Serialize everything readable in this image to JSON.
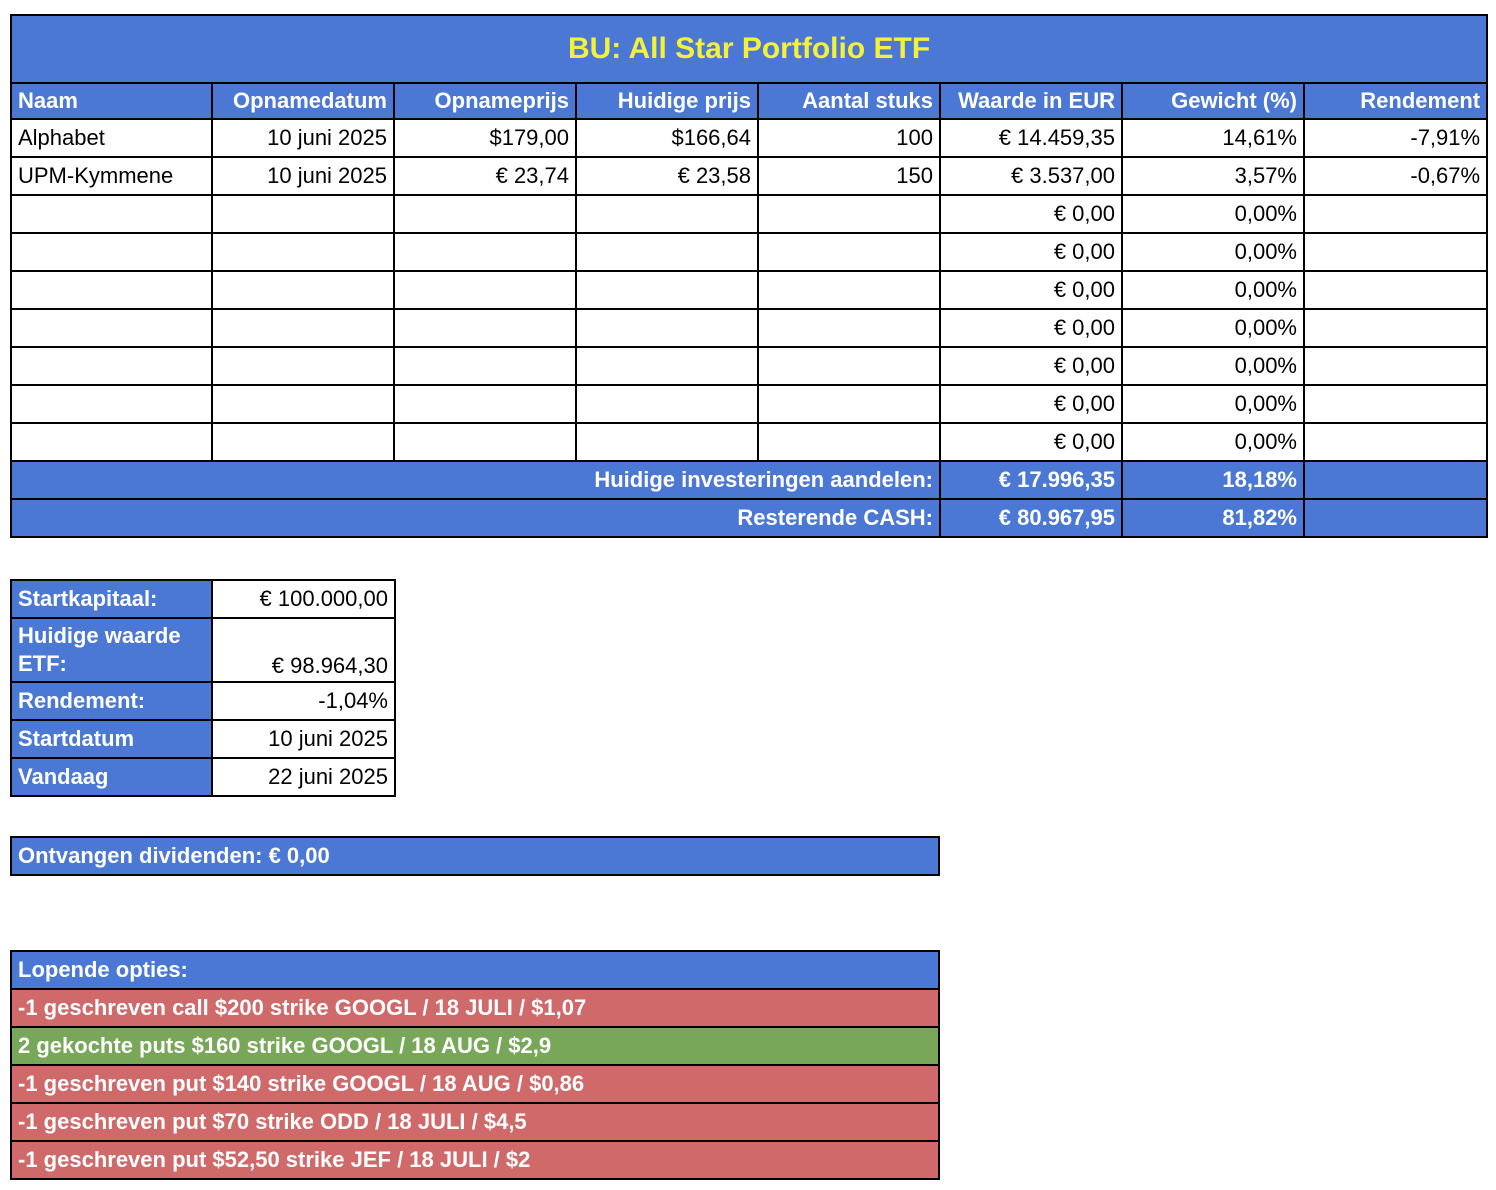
{
  "title": "BU: All Star Portfolio ETF",
  "columns": [
    "Naam",
    "Opnamedatum",
    "Opnameprijs",
    "Huidige prijs",
    "Aantal stuks",
    "Waarde in EUR",
    "Gewicht (%)",
    "Rendement"
  ],
  "rows": [
    {
      "naam": "Alphabet",
      "opnamedatum": "10 juni 2025",
      "opnameprijs": "$179,00",
      "huidige_prijs": "$166,64",
      "aantal": "100",
      "waarde": "€ 14.459,35",
      "gewicht": "14,61%",
      "rendement": "-7,91%"
    },
    {
      "naam": "UPM-Kymmene",
      "opnamedatum": "10 juni 2025",
      "opnameprijs": "€ 23,74",
      "huidige_prijs": "€ 23,58",
      "aantal": "150",
      "waarde": "€ 3.537,00",
      "gewicht": "3,57%",
      "rendement": "-0,67%"
    },
    {
      "naam": "",
      "opnamedatum": "",
      "opnameprijs": "",
      "huidige_prijs": "",
      "aantal": "",
      "waarde": "€ 0,00",
      "gewicht": "0,00%",
      "rendement": ""
    },
    {
      "naam": "",
      "opnamedatum": "",
      "opnameprijs": "",
      "huidige_prijs": "",
      "aantal": "",
      "waarde": "€ 0,00",
      "gewicht": "0,00%",
      "rendement": ""
    },
    {
      "naam": "",
      "opnamedatum": "",
      "opnameprijs": "",
      "huidige_prijs": "",
      "aantal": "",
      "waarde": "€ 0,00",
      "gewicht": "0,00%",
      "rendement": ""
    },
    {
      "naam": "",
      "opnamedatum": "",
      "opnameprijs": "",
      "huidige_prijs": "",
      "aantal": "",
      "waarde": "€ 0,00",
      "gewicht": "0,00%",
      "rendement": ""
    },
    {
      "naam": "",
      "opnamedatum": "",
      "opnameprijs": "",
      "huidige_prijs": "",
      "aantal": "",
      "waarde": "€ 0,00",
      "gewicht": "0,00%",
      "rendement": ""
    },
    {
      "naam": "",
      "opnamedatum": "",
      "opnameprijs": "",
      "huidige_prijs": "",
      "aantal": "",
      "waarde": "€ 0,00",
      "gewicht": "0,00%",
      "rendement": ""
    },
    {
      "naam": "",
      "opnamedatum": "",
      "opnameprijs": "",
      "huidige_prijs": "",
      "aantal": "",
      "waarde": "€ 0,00",
      "gewicht": "0,00%",
      "rendement": ""
    }
  ],
  "totals": {
    "invest_label": "Huidige investeringen aandelen:",
    "invest_value": "€ 17.996,35",
    "invest_weight": "18,18%",
    "cash_label": "Resterende CASH:",
    "cash_value": "€ 80.967,95",
    "cash_weight": "81,82%"
  },
  "summary": [
    {
      "label": "Startkapitaal:",
      "value": "€ 100.000,00"
    },
    {
      "label": "Huidige waarde ETF:",
      "value": "€ 98.964,30"
    },
    {
      "label": "Rendement:",
      "value": "-1,04%"
    },
    {
      "label": "Startdatum",
      "value": "10 juni 2025"
    },
    {
      "label": "Vandaag",
      "value": "22 juni 2025"
    }
  ],
  "dividends": "Ontvangen dividenden: € 0,00",
  "options": {
    "header": "Lopende opties:",
    "items": [
      {
        "text": "-1 geschreven call $200 strike GOOGL / 18 JULI / $1,07",
        "status": "red"
      },
      {
        "text": "2 gekochte puts $160 strike GOOGL / 18 AUG / $2,9",
        "status": "green"
      },
      {
        "text": "-1 geschreven put $140 strike GOOGL / 18 AUG / $0,86",
        "status": "red"
      },
      {
        "text": "-1 geschreven put $70 strike ODD / 18 JULI / $4,5",
        "status": "red"
      },
      {
        "text": "-1 geschreven put $52,50 strike JEF / 18 JULI / $2",
        "status": "red"
      }
    ]
  },
  "colors": {
    "header_blue": "#4a78d4",
    "title_yellow": "#f5f03a",
    "red": "#d06a6a",
    "green": "#79a75a"
  }
}
